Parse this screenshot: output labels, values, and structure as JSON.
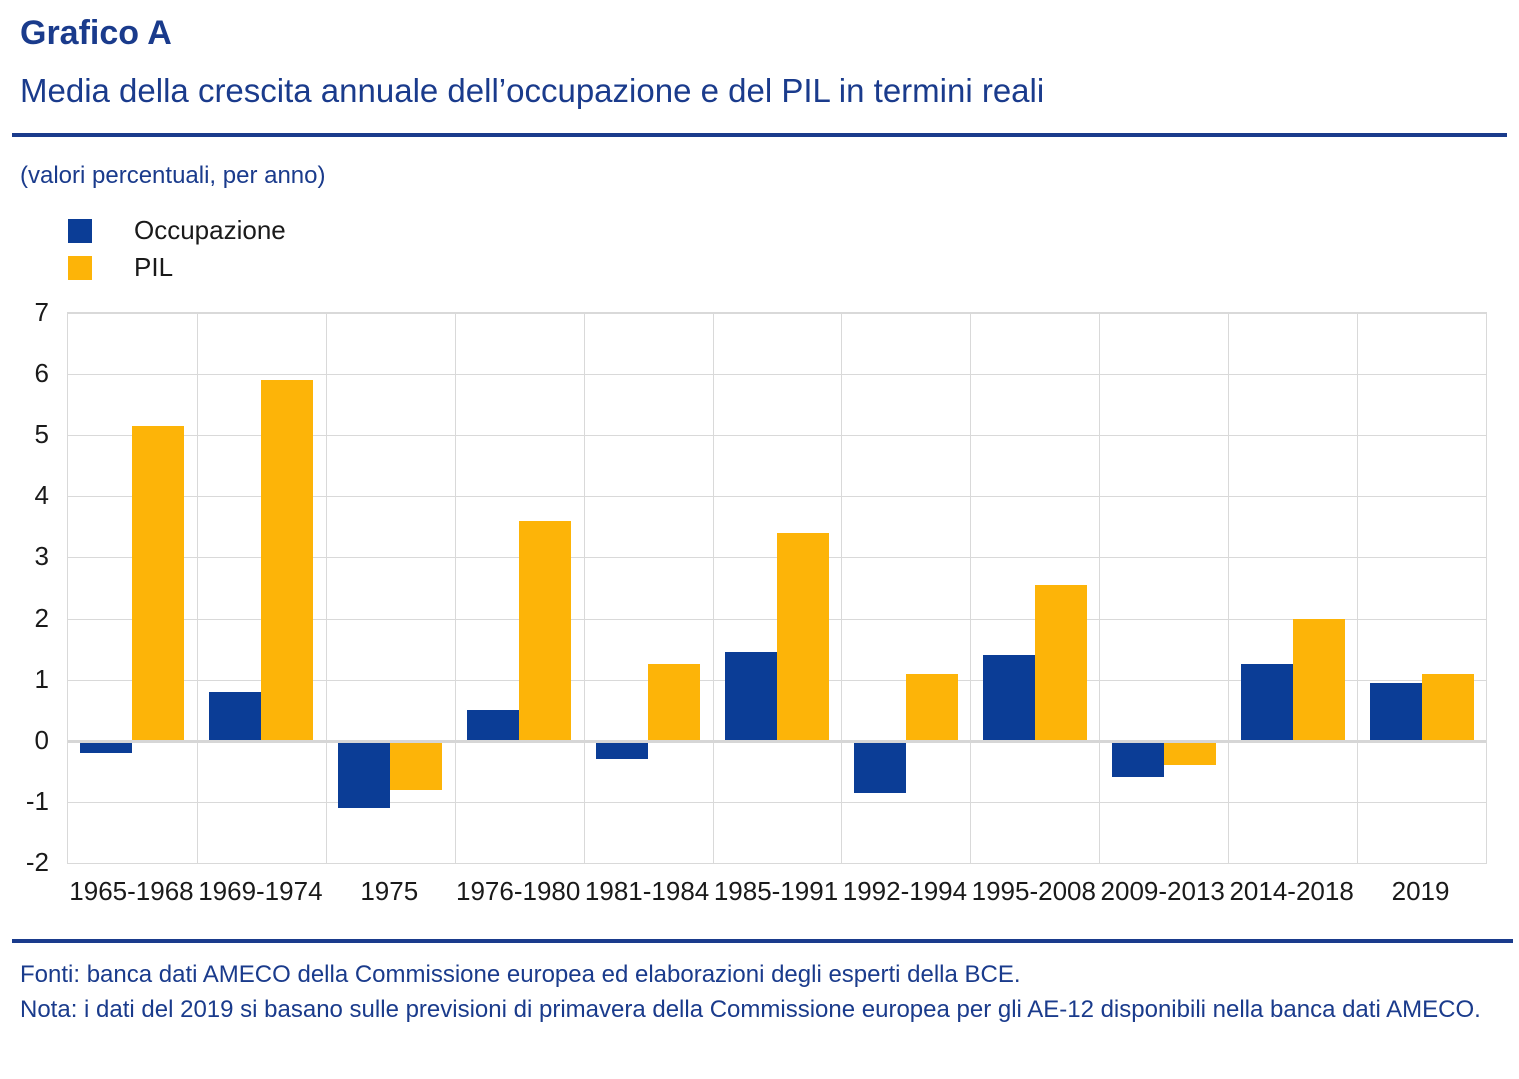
{
  "header": {
    "title": "Grafico A",
    "subtitle": "Media della crescita annuale dell’occupazione e del PIL in termini reali",
    "unit_note": "(valori percentuali, per anno)"
  },
  "legend": [
    {
      "label": "Occupazione",
      "color": "#0b3d96"
    },
    {
      "label": "PIL",
      "color": "#fdb408"
    }
  ],
  "chart_data": {
    "type": "bar",
    "categories": [
      "1965-1968",
      "1969-1974",
      "1975",
      "1976-1980",
      "1981-1984",
      "1985-1991",
      "1992-1994",
      "1995-2008",
      "2009-2013",
      "2014-2018",
      "2019"
    ],
    "series": [
      {
        "name": "Occupazione",
        "color": "#0b3d96",
        "values": [
          -0.2,
          0.8,
          -1.1,
          0.5,
          -0.3,
          1.45,
          -0.85,
          1.4,
          -0.6,
          1.25,
          0.95
        ]
      },
      {
        "name": "PIL",
        "color": "#fdb408",
        "values": [
          5.15,
          5.9,
          -0.8,
          3.6,
          1.25,
          3.4,
          1.1,
          2.55,
          -0.4,
          2.0,
          1.1
        ]
      }
    ],
    "title": "Grafico A",
    "subtitle": "Media della crescita annuale dell’occupazione e del PIL in termini reali",
    "xlabel": "",
    "ylabel": "(valori percentuali, per anno)",
    "ylim": [
      -2,
      7
    ],
    "ytick_step": 1,
    "grid": true,
    "legend_position": "top-left"
  },
  "footer": {
    "source": "Fonti: banca dati AMECO della Commissione europea ed elaborazioni degli esperti della BCE.",
    "note": "Nota: i dati del 2019 si basano sulle previsioni di primavera della Commissione europea per gli AE-12 disponibili nella banca dati AMECO."
  },
  "colors": {
    "accent_navy": "#1a3b8c",
    "bar_blue": "#0b3d96",
    "bar_yellow": "#fdb408",
    "gridline": "#d9d9d9",
    "zero_line": "#d6d6d6",
    "axis_text": "#1a1a1a"
  }
}
